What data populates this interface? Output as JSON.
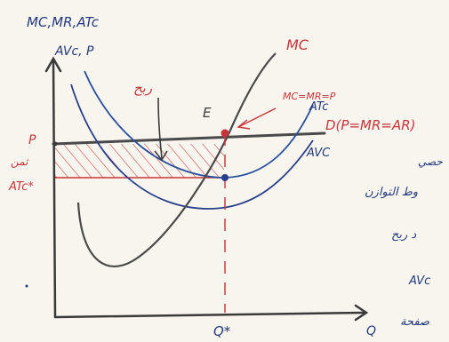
{
  "labels": {
    "y_axis_line1": "MC,MR,ATc",
    "y_axis_line2": "AVc, P",
    "x_axis": "Q",
    "q_star": "Q*",
    "mc": "MC",
    "atc": "ATc",
    "avc": "AVC",
    "equilibrium": "E",
    "condition": "MC=MR=P",
    "demand": "D(P=MR=AR)",
    "price": "P",
    "atc_star": "ATc*",
    "left_arabic": "ثمن",
    "profit_arabic": "ربح",
    "right_arabic_1": "حصي",
    "right_arabic_2": "وط التوازن",
    "right_arabic_3": "د ربح",
    "right_arabic_4": "AVc",
    "right_arabic_5": "صفحة"
  },
  "colors": {
    "axis": "#3a3a3a",
    "mc": "#4a4a4a",
    "atc": "#2a4f9c",
    "avc": "#2a3f8c",
    "demand": "#4a4a4a",
    "annotation": "#c8343b",
    "point_e": "#c8343b",
    "point_atc": "#2a3f8c",
    "ink": "#243a7c"
  }
}
